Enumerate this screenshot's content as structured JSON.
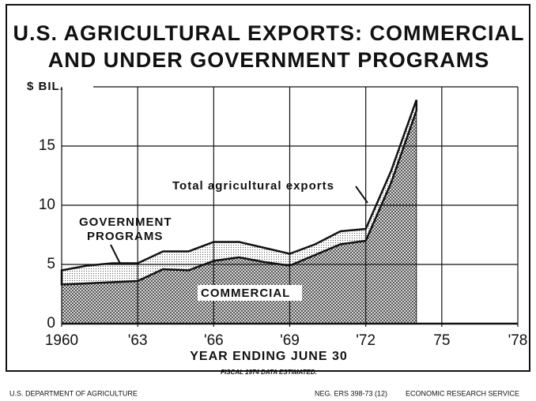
{
  "chart_data": {
    "type": "stacked_area",
    "title": [
      "U.S. AGRICULTURAL EXPORTS: COMMERCIAL",
      "AND UNDER GOVERNMENT PROGRAMS"
    ],
    "y_axis_label": "$ BIL.",
    "x_axis_label": "YEAR ENDING JUNE 30",
    "note": "FISCAL 1974 DATA ESTIMATED.",
    "annotations": [
      "Total agricultural exports",
      "GOVERNMENT",
      "PROGRAMS",
      "COMMERCIAL"
    ],
    "footer": [
      "U.S. DEPARTMENT OF AGRICULTURE",
      "NEG. ERS 398-73 (12)",
      "ECONOMIC RESEARCH SERVICE"
    ],
    "x": [
      1960,
      1961,
      1962,
      1963,
      1964,
      1965,
      1966,
      1967,
      1968,
      1969,
      1970,
      1971,
      1972,
      1973,
      1974
    ],
    "series": [
      {
        "name": "COMMERCIAL",
        "color": "#333333",
        "values": [
          3.3,
          3.4,
          3.5,
          3.6,
          4.6,
          4.5,
          5.3,
          5.6,
          5.2,
          4.9,
          5.8,
          6.7,
          7.0,
          11.9,
          18.0
        ]
      },
      {
        "name": "GOVERNMENT PROGRAMS",
        "color": "#555555",
        "values": [
          1.2,
          1.5,
          1.6,
          1.5,
          1.5,
          1.6,
          1.6,
          1.3,
          1.2,
          1.0,
          0.9,
          1.1,
          1.0,
          1.0,
          0.9
        ]
      }
    ],
    "xlim": [
      1960,
      1978
    ],
    "xticks": [
      1960,
      {
        "value": 1963,
        "label": "'63"
      },
      {
        "value": 1966,
        "label": "'66"
      },
      {
        "value": 1969,
        "label": "'69"
      },
      {
        "value": 1972,
        "label": "'72"
      },
      {
        "value": 1975,
        "label": "75"
      },
      {
        "value": 1978,
        "label": "'78"
      }
    ],
    "ylim": [
      0,
      20
    ],
    "yticks": [
      0,
      5,
      10,
      15
    ],
    "grid": true
  }
}
